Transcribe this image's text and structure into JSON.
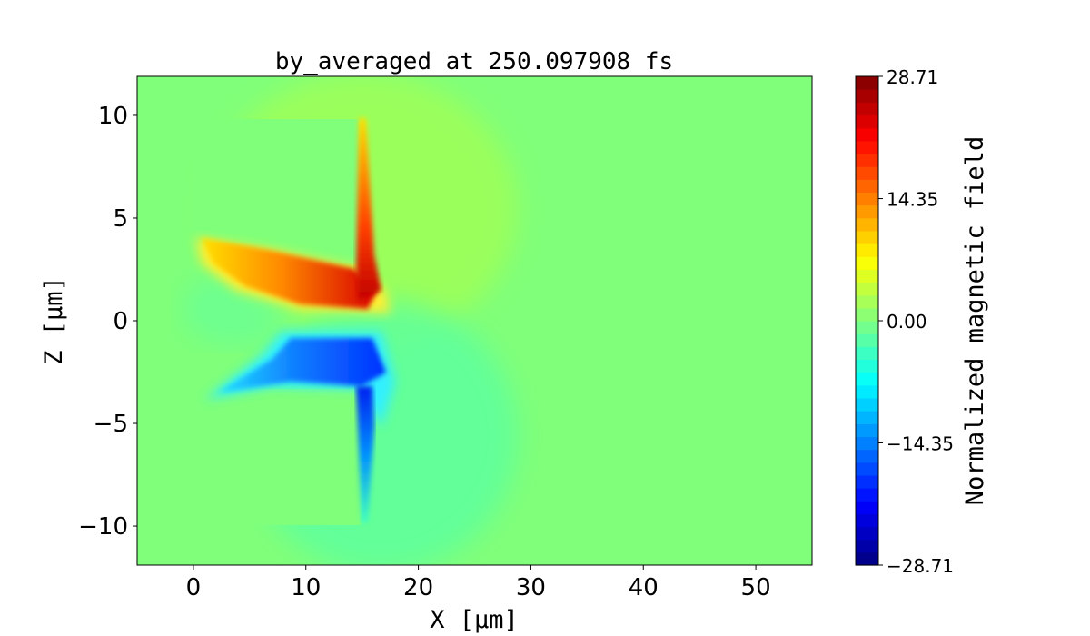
{
  "chart_data": {
    "type": "heatmap",
    "title": "by_averaged at 250.097908 fs",
    "xlabel": "X [μm]",
    "ylabel": "Z [μm]",
    "xlim": [
      -5,
      55
    ],
    "ylim": [
      -11.9,
      11.9
    ],
    "xticks": [
      0,
      10,
      20,
      30,
      40,
      50
    ],
    "xtick_labels": [
      "0",
      "10",
      "20",
      "30",
      "40",
      "50"
    ],
    "yticks": [
      10,
      5,
      0,
      -5,
      -10
    ],
    "ytick_labels": [
      "10",
      "5",
      "0",
      "−5",
      "−10"
    ],
    "colormap": "jet",
    "colorbar": {
      "label": "Normalized magnetic field",
      "range": [
        -28.71,
        28.71
      ],
      "ticks": [
        28.71,
        14.35,
        0.0,
        -14.35,
        -28.71
      ],
      "tick_labels": [
        "28.71",
        "14.35",
        "0.00",
        "−14.35",
        "−28.71"
      ],
      "levels": 38
    },
    "features": [
      {
        "name": "positive lobe",
        "x_range": [
          0.5,
          17.5
        ],
        "z_range": [
          0.5,
          4.2
        ],
        "peak": 28.71
      },
      {
        "name": "negative lobe",
        "x_range": [
          1,
          17.5
        ],
        "z_range": [
          -4,
          -0.5
        ],
        "peak": -28.71
      },
      {
        "name": "upper target block",
        "x_range": [
          0,
          15
        ],
        "z_range": [
          2.5,
          9.8
        ],
        "value": 0
      },
      {
        "name": "lower target block",
        "x_range": [
          0,
          15
        ],
        "z_range": [
          -9.8,
          -3
        ],
        "value": 0
      }
    ]
  }
}
